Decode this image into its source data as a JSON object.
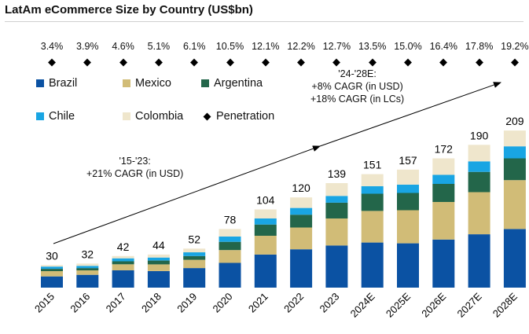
{
  "title": "LatAm eCommerce Size by Country (US$bn)",
  "colors": {
    "Brazil": "#0b52a3",
    "Mexico": "#d1bc77",
    "Argentina": "#23664a",
    "Chile": "#19a5e3",
    "Colombia": "#efe6cc",
    "Penetration": "#000000"
  },
  "legend": {
    "brazil": "Brazil",
    "mexico": "Mexico",
    "argentina": "Argentina",
    "chile": "Chile",
    "colombia": "Colombia",
    "penetration": "Penetration"
  },
  "annotations": {
    "cagr_hist_line1": "'15-'23:",
    "cagr_hist_line2": "+21% CAGR (in USD)",
    "cagr_fcst_line1": "'24-'28E:",
    "cagr_fcst_line2": "+8% CAGR (in USD)",
    "cagr_fcst_line3": "+18% CAGR (in LCs)"
  },
  "chart_data": {
    "type": "bar",
    "stacked": true,
    "title": "LatAm eCommerce Size by Country (US$bn)",
    "categories": [
      "2015",
      "2016",
      "2017",
      "2018",
      "2019",
      "2020",
      "2021",
      "2022",
      "2023",
      "2024E",
      "2025E",
      "2026E",
      "2027E",
      "2028E"
    ],
    "totals": [
      "30",
      "32",
      "42",
      "44",
      "52",
      "78",
      "104",
      "120",
      "139",
      "151",
      "157",
      "172",
      "190",
      "209"
    ],
    "penetration": [
      "3.4%",
      "3.9%",
      "4.6%",
      "5.1%",
      "6.1%",
      "10.5%",
      "12.1%",
      "12.2%",
      "12.7%",
      "13.5%",
      "15.0%",
      "16.4%",
      "17.8%",
      "19.2%"
    ],
    "ylim": [
      0,
      230
    ],
    "series": [
      {
        "name": "Brazil",
        "values": [
          15,
          17,
          23,
          22,
          26,
          33,
          44,
          51,
          56,
          60,
          59,
          64,
          71,
          78
        ]
      },
      {
        "name": "Mexico",
        "values": [
          7,
          6,
          8,
          9,
          11,
          17,
          25,
          29,
          36,
          42,
          44,
          50,
          56,
          65
        ]
      },
      {
        "name": "Argentina",
        "values": [
          3,
          3,
          4,
          5,
          5,
          11,
          15,
          17,
          21,
          23,
          23,
          24,
          27,
          29
        ]
      },
      {
        "name": "Chile",
        "values": [
          3,
          3,
          4,
          4,
          5,
          7,
          8,
          9,
          9,
          10,
          11,
          12,
          14,
          16
        ]
      },
      {
        "name": "Colombia",
        "values": [
          2,
          3,
          3,
          4,
          5,
          10,
          12,
          14,
          17,
          16,
          20,
          22,
          22,
          21
        ]
      }
    ]
  }
}
